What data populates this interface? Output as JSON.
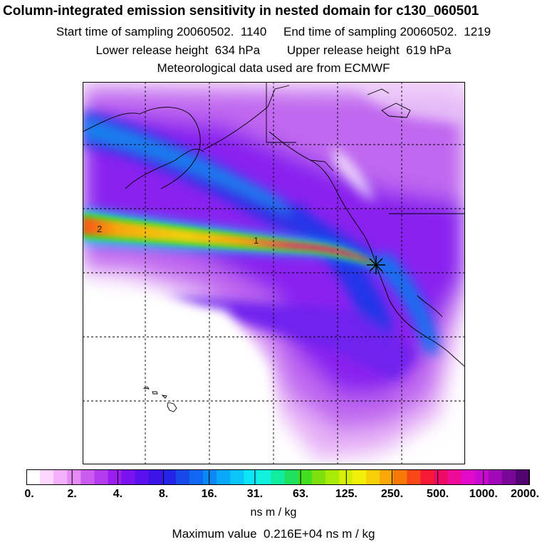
{
  "header": {
    "title": "Column-integrated emission sensitivity in nested domain for c130_060501",
    "start_label": "Start time of sampling",
    "start_value": "20060502.  1140",
    "end_label": "End time of sampling",
    "end_value": "20060502.  1219",
    "lower_label": "Lower release height",
    "lower_value": "634 hPa",
    "upper_label": "Upper release height",
    "upper_value": "619 hPa",
    "met_line": "Meteorological data used are from ECMWF"
  },
  "map": {
    "contour_labels": [
      "2",
      "1"
    ],
    "release_marker": "star-marker",
    "colors": {
      "background": "#ffffff",
      "grid": "#000000",
      "coast": "#000000"
    }
  },
  "colorbar": {
    "tick_labels": [
      "0.",
      "2.",
      "4.",
      "8.",
      "16.",
      "31.",
      "63.",
      "125.",
      "250.",
      "500.",
      "1000.",
      "2000."
    ],
    "colors": [
      "#ffffff",
      "#ffd6ff",
      "#f5b0fb",
      "#e58af5",
      "#cc5cf0",
      "#b53bee",
      "#9a1ef0",
      "#7a12ef",
      "#5a10ee",
      "#3c14ea",
      "#2424e6",
      "#1848ea",
      "#1068f2",
      "#0a88f6",
      "#0aa8f8",
      "#0ac6f8",
      "#0ae6f8",
      "#10f2dc",
      "#10eca0",
      "#20e060",
      "#40e020",
      "#7ce010",
      "#aaea08",
      "#d4ee08",
      "#f2f00a",
      "#f8d00a",
      "#f8a808",
      "#f87808",
      "#f84818",
      "#f81838",
      "#f00a68",
      "#f00a98",
      "#e00ac8",
      "#c80ad0",
      "#a008b8",
      "#7a0698",
      "#520470"
    ],
    "units": "ns m / kg",
    "max_label": "Maximum value",
    "max_value": "0.216E+04",
    "max_units": "ns m / kg"
  }
}
